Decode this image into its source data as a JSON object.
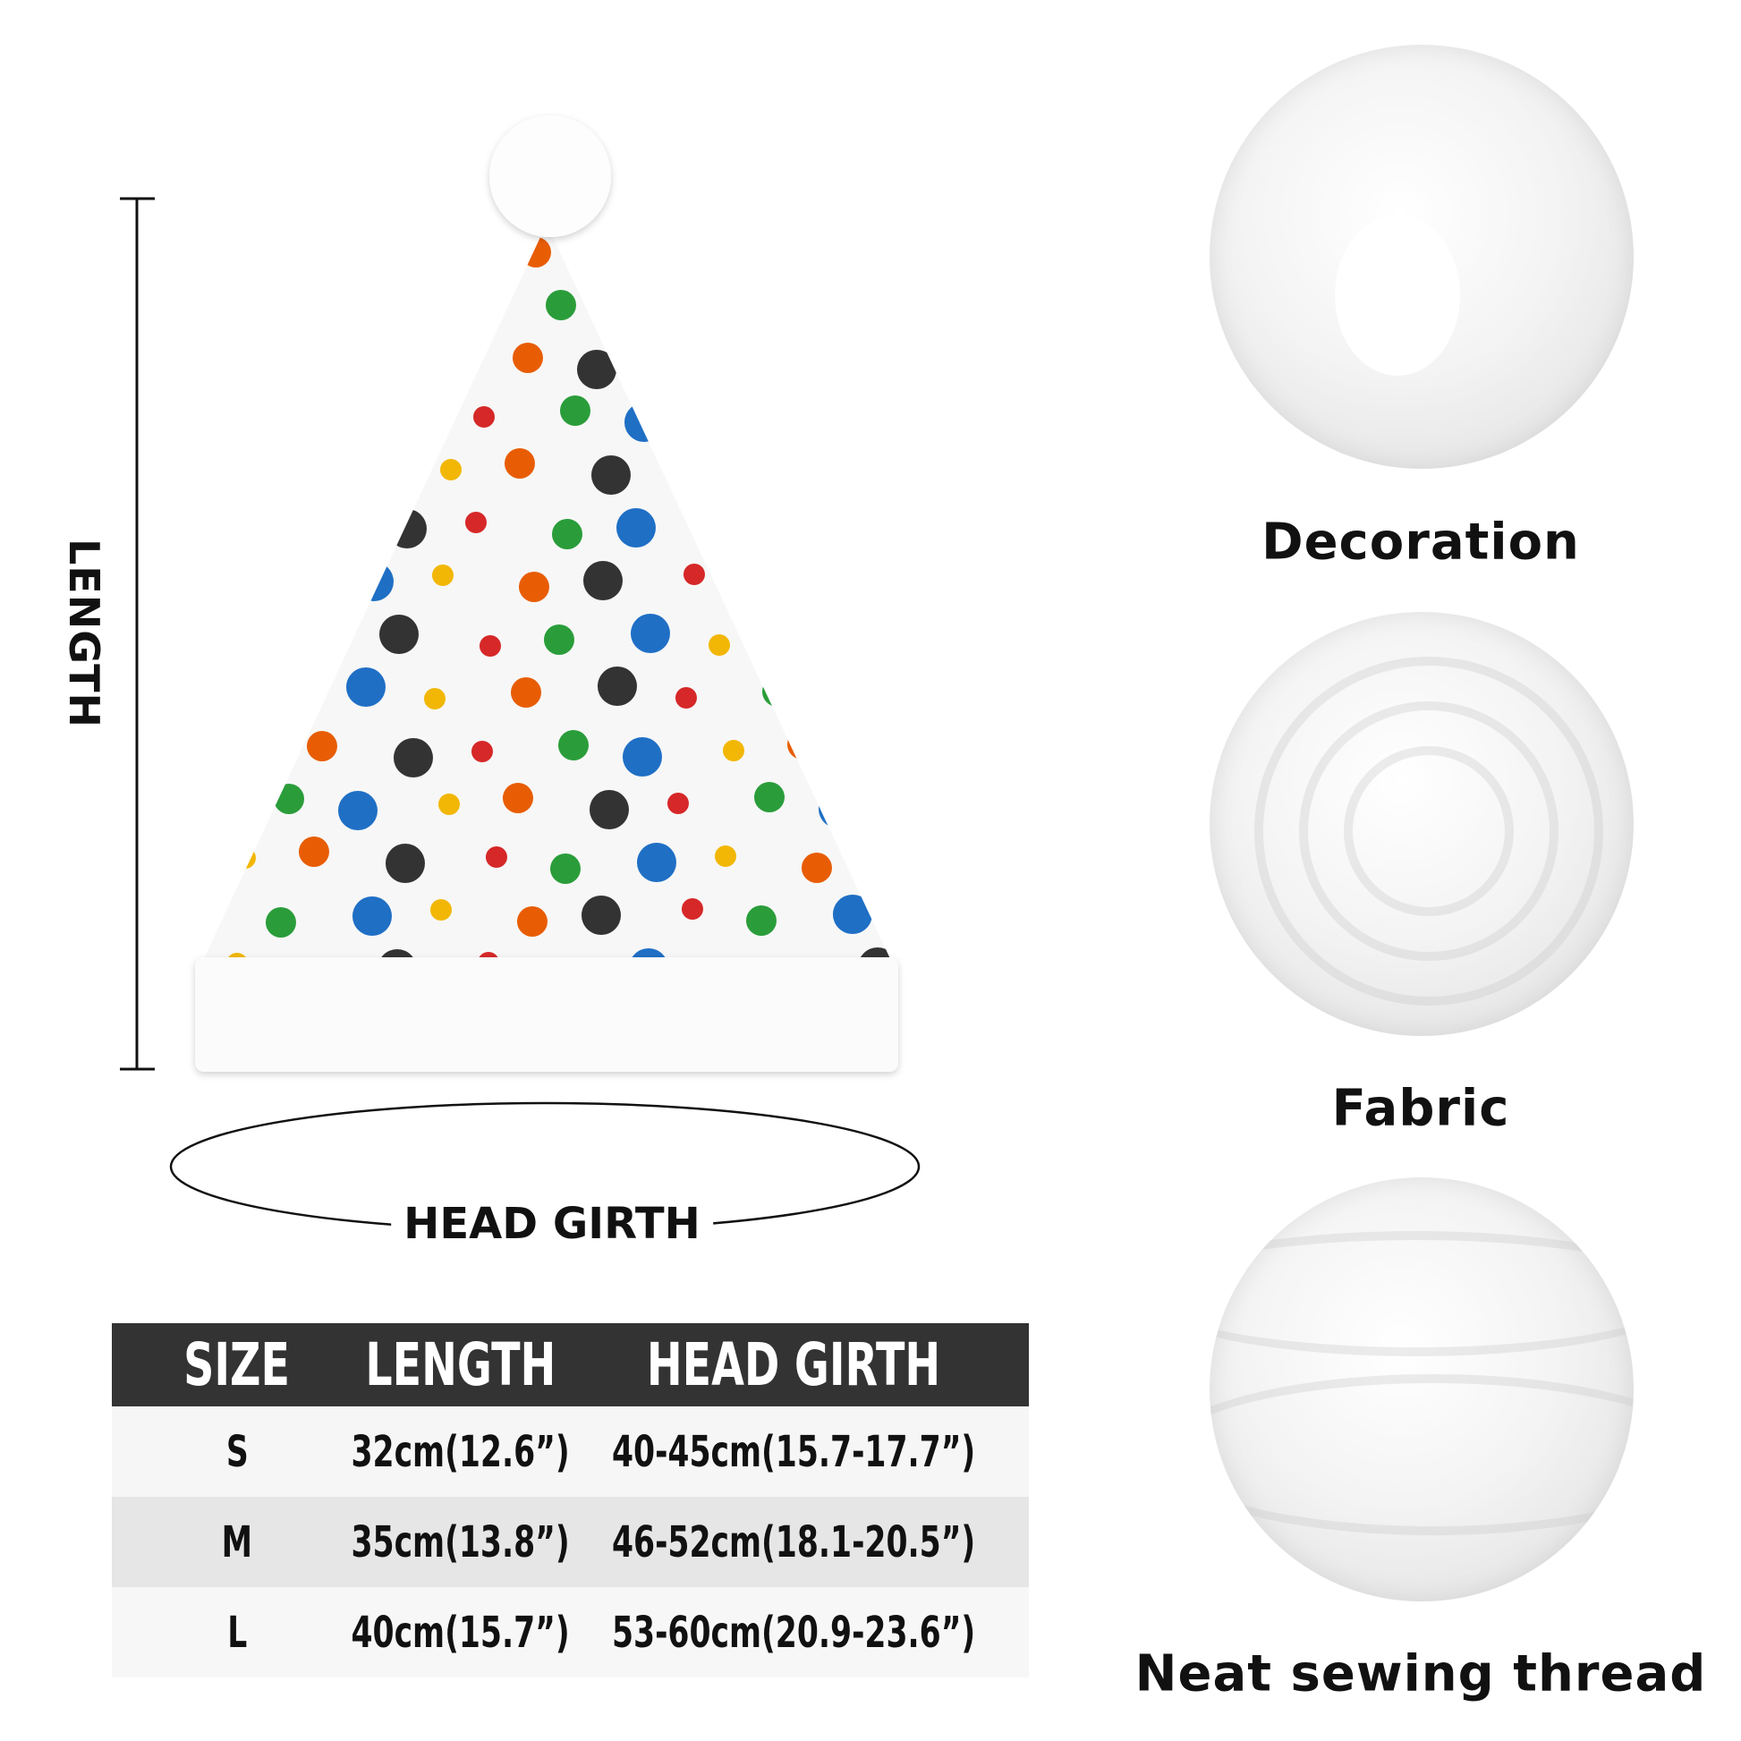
{
  "diagram": {
    "length_label": "LENGTH",
    "head_girth_label": "HEAD GIRTH"
  },
  "size_table": {
    "headers": [
      "SIZE",
      "LENGTH",
      "HEAD GIRTH"
    ],
    "rows": [
      [
        "S",
        "32cm(12.6”)",
        "40-45cm(15.7-17.7”)"
      ],
      [
        "M",
        "35cm(13.8”)",
        "46-52cm(18.1-20.5”)"
      ],
      [
        "L",
        "40cm(15.7”)",
        "53-60cm(20.9-23.6”)"
      ]
    ],
    "header_color": "#333333"
  },
  "details": [
    {
      "label": "Decoration"
    },
    {
      "label": "Fabric"
    },
    {
      "label": "Neat sewing thread"
    }
  ],
  "colors": {
    "pattern": [
      "#d62828",
      "#2a9d3a",
      "#1f6fc5",
      "#f2b705",
      "#e85d04",
      "#333333"
    ]
  }
}
